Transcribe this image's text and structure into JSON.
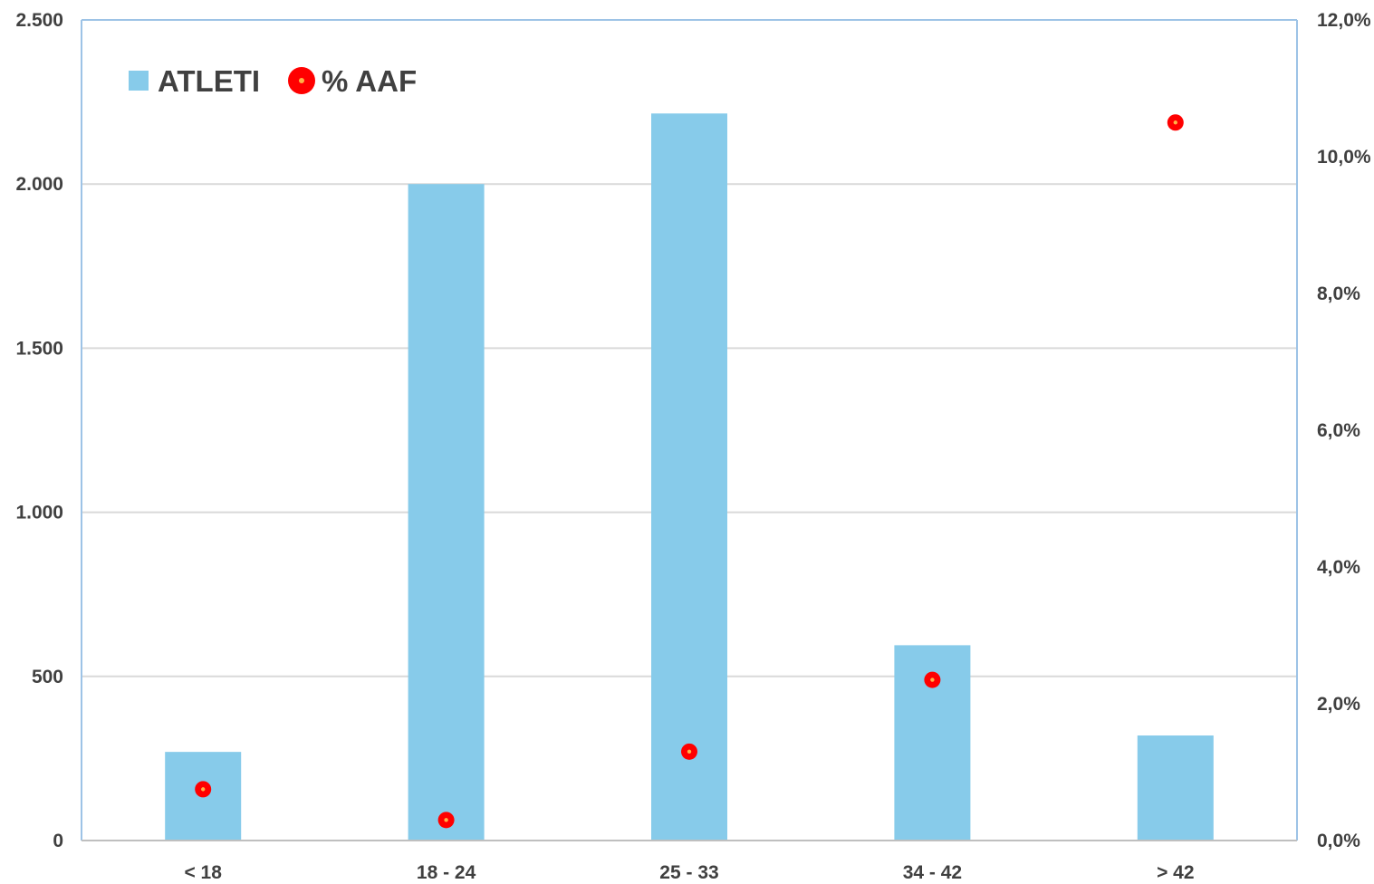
{
  "chart_data": {
    "type": "bar",
    "categories": [
      "< 18",
      "18 - 24",
      "25 - 33",
      "34 - 42",
      "> 42"
    ],
    "series": [
      {
        "name": "ATLETI",
        "type": "bar",
        "axis": "left",
        "color": "#87CBEA",
        "values": [
          270,
          2000,
          2215,
          595,
          320
        ]
      },
      {
        "name": "% AAF",
        "type": "scatter",
        "axis": "right",
        "color": "#FF0000",
        "values": [
          0.75,
          0.3,
          1.3,
          2.35,
          10.5
        ]
      }
    ],
    "y_left": {
      "min": 0,
      "max": 2500,
      "ticks": [
        0,
        500,
        1000,
        1500,
        2000,
        2500
      ],
      "tick_labels": [
        "0",
        "500",
        "1.000",
        "1.500",
        "2.000",
        "2.500"
      ]
    },
    "y_right": {
      "min": 0,
      "max": 12,
      "ticks": [
        0,
        2,
        4,
        6,
        8,
        10,
        12
      ],
      "tick_labels": [
        "0,0%",
        "2,0%",
        "4,0%",
        "6,0%",
        "8,0%",
        "10,0%",
        "12,0%"
      ]
    },
    "title": "",
    "xlabel": "",
    "ylabel": "",
    "grid": true,
    "legend": {
      "position": "top-left",
      "entries": [
        "ATLETI",
        "% AAF"
      ]
    }
  }
}
